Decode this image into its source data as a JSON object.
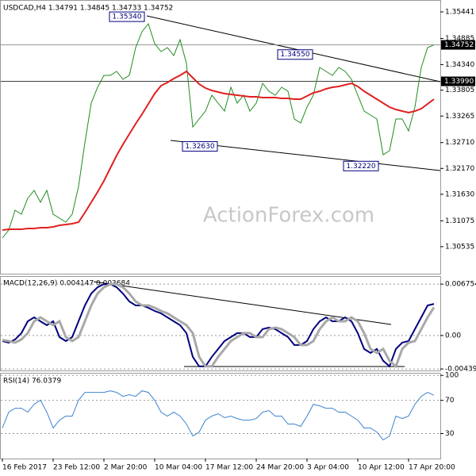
{
  "watermark": "ActionForex.com",
  "chart_data": [
    {
      "type": "line",
      "title": "USDCAD,H4 1.34791 1.34845 1.34733 1.34752",
      "series": [
        {
          "color": "#1e8c1e",
          "values": [
            1.30716,
            1.30882,
            1.31296,
            1.31213,
            1.31545,
            1.31711,
            1.31462,
            1.31711,
            1.31213,
            1.3113,
            1.31047,
            1.31213,
            1.31793,
            1.32705,
            1.33534,
            1.33866,
            1.34115,
            1.34115,
            1.34197,
            1.34032,
            1.34115,
            1.34695,
            1.35026,
            1.35192,
            1.34778,
            1.34612,
            1.34695,
            1.34529,
            1.34861,
            1.34363,
            1.33037,
            1.33203,
            1.33368,
            1.337,
            1.33534,
            1.33368,
            1.33866,
            1.33534,
            1.337,
            1.33368,
            1.33534,
            1.33949,
            1.33783,
            1.337,
            1.33866,
            1.33783,
            1.33203,
            1.3312,
            1.33451,
            1.337,
            1.3428,
            1.34197,
            1.34115,
            1.3428,
            1.34197,
            1.34032,
            1.337,
            1.33368,
            1.33286,
            1.33203,
            1.32457,
            1.3254,
            1.33203,
            1.33203,
            1.32954,
            1.33451,
            1.3428,
            1.34695,
            1.34752
          ]
        },
        {
          "color": "#e02020",
          "values": [
            1.30882,
            1.30898,
            1.30898,
            1.30898,
            1.30915,
            1.30915,
            1.30931,
            1.30931,
            1.30948,
            1.30981,
            1.30998,
            1.31014,
            1.31047,
            1.31246,
            1.31462,
            1.31677,
            1.31909,
            1.32175,
            1.3244,
            1.32672,
            1.32888,
            1.33103,
            1.33302,
            1.33518,
            1.33733,
            1.33899,
            1.33965,
            1.34048,
            1.34115,
            1.34197,
            1.34065,
            1.33932,
            1.33849,
            1.338,
            1.33766,
            1.33733,
            1.33717,
            1.337,
            1.33684,
            1.33667,
            1.33667,
            1.3365,
            1.3365,
            1.3365,
            1.33634,
            1.33634,
            1.33617,
            1.33617,
            1.33684,
            1.3375,
            1.33783,
            1.33833,
            1.33866,
            1.33882,
            1.33916,
            1.33949,
            1.33882,
            1.33783,
            1.337,
            1.33617,
            1.33534,
            1.33451,
            1.33402,
            1.33368,
            1.33335,
            1.33368,
            1.33418,
            1.33518,
            1.33617
          ]
        }
      ],
      "ylim": [
        1.2997,
        1.3564
      ],
      "yticks": [
        1.35441,
        1.34885,
        {
          "value": 1.3434,
          "label": "1.34340"
        },
        1.33805,
        1.33265,
        {
          "value": 1.3271,
          "label": "1.32710"
        },
        {
          "value": 1.3217,
          "label": "1.32170"
        },
        {
          "value": 1.3163,
          "label": "1.31630"
        },
        1.31075,
        1.30535
      ],
      "hlines": [
        {
          "value": 1.3399,
          "label": "1.33990"
        },
        {
          "value": 1.34752,
          "label": "1.34752"
        }
      ],
      "annotations": [
        {
          "value": 1.3534,
          "label": "1.35340"
        },
        {
          "value": 1.3455,
          "label": "1.34550"
        },
        {
          "value": 1.3263,
          "label": "1.32630"
        },
        {
          "value": 1.3222,
          "label": "1.32220"
        }
      ]
    },
    {
      "type": "line",
      "title": "MACD(12,26,9) 0.004147 0.003684",
      "series": [
        {
          "color": "#00007f",
          "values": [
            -0.00073,
            -0.00094,
            -0.00052,
            0.00031,
            0.00187,
            0.00239,
            0.00187,
            0.00135,
            0.00187,
            -0.00021,
            -0.00073,
            -0.00021,
            0.00187,
            0.00395,
            0.00551,
            0.00634,
            0.00676,
            0.00676,
            0.00634,
            0.00551,
            0.00447,
            0.00395,
            0.00395,
            0.00364,
            0.00322,
            0.00291,
            0.00239,
            0.00187,
            0.00135,
            0.00031,
            -0.00281,
            -0.00406,
            -0.00406,
            -0.00281,
            -0.00177,
            -0.00073,
            -0.00021,
            0.00031,
            0.00031,
            -0.00021,
            -0.00021,
            0.00083,
            0.00104,
            0.00083,
            0.00031,
            -0.00021,
            -0.00125,
            -0.00125,
            -0.00073,
            0.00083,
            0.00187,
            0.00239,
            0.00187,
            0.00187,
            0.00239,
            0.00187,
            0.00031,
            -0.00177,
            -0.00229,
            -0.00177,
            -0.00333,
            -0.00406,
            -0.00177,
            -0.00094,
            -0.00073,
            0.00083,
            0.00239,
            0.00395,
            0.00415
          ]
        },
        {
          "color": "#a8a8a8",
          "values": [
            -0.0006,
            -0.00073,
            -0.00094,
            -0.00052,
            0.00031,
            0.00187,
            0.00239,
            0.00187,
            0.00135,
            0.00187,
            -0.00021,
            -0.00073,
            -0.00021,
            0.00187,
            0.00395,
            0.00551,
            0.00634,
            0.00676,
            0.00676,
            0.00634,
            0.00551,
            0.00447,
            0.00395,
            0.00395,
            0.00364,
            0.00322,
            0.00291,
            0.00239,
            0.00187,
            0.00135,
            0.00031,
            -0.00281,
            -0.00406,
            -0.00406,
            -0.00281,
            -0.00177,
            -0.00073,
            -0.00021,
            0.00031,
            0.00031,
            -0.00021,
            -0.00021,
            0.00083,
            0.00104,
            0.00083,
            0.00031,
            -0.00021,
            -0.00125,
            -0.00125,
            -0.00073,
            0.00083,
            0.00187,
            0.00239,
            0.00187,
            0.00187,
            0.00239,
            0.00187,
            0.00031,
            -0.00177,
            -0.00229,
            -0.00177,
            -0.00333,
            -0.00406,
            -0.00177,
            -0.00094,
            -0.00073,
            0.00083,
            0.00239,
            0.00368
          ]
        }
      ],
      "ylim": [
        -0.0046,
        0.0076
      ],
      "yticks": [
        0.006754,
        {
          "value": 0,
          "label": "0.00"
        },
        -0.004399
      ],
      "grid": true
    },
    {
      "type": "line",
      "title": "RSI(14) 76.0379",
      "categories": [
        "16 Feb 2017",
        null,
        null,
        null,
        null,
        null,
        null,
        null,
        "23 Feb 12:00",
        null,
        null,
        null,
        null,
        null,
        null,
        null,
        "2 Mar 20:00",
        null,
        null,
        null,
        null,
        null,
        null,
        null,
        "10 Mar 04:00",
        null,
        null,
        null,
        null,
        null,
        null,
        null,
        "17 Mar 12:00",
        null,
        null,
        null,
        null,
        null,
        null,
        null,
        "24 Mar 20:00",
        null,
        null,
        null,
        null,
        null,
        null,
        null,
        "3 Apr 04:00",
        null,
        null,
        null,
        null,
        null,
        null,
        null,
        "10 Apr 12:00",
        null,
        null,
        null,
        null,
        null,
        null,
        null,
        "17 Apr 20:00",
        null,
        null,
        null,
        null
      ],
      "series": [
        {
          "color": "#3c82d2",
          "values": [
            36.7,
            55.8,
            60.5,
            60.5,
            55.8,
            65.3,
            70.1,
            55.8,
            36.7,
            46.2,
            51.0,
            51.0,
            70.1,
            79.6,
            79.6,
            79.6,
            79.6,
            81.5,
            79.6,
            74.8,
            76.8,
            74.8,
            81.5,
            79.6,
            70.1,
            55.8,
            51.0,
            55.8,
            51.0,
            41.5,
            27.1,
            31.9,
            46.2,
            51.0,
            53.9,
            49.1,
            51.0,
            48.1,
            46.2,
            46.2,
            48.1,
            55.8,
            57.7,
            51.0,
            51.0,
            41.5,
            41.5,
            38.6,
            51.0,
            65.3,
            63.4,
            60.5,
            60.5,
            55.8,
            55.8,
            51.0,
            46.2,
            36.7,
            36.7,
            31.9,
            22.4,
            27.1,
            51.0,
            48.1,
            51.0,
            65.3,
            74.8,
            79.6,
            76.0
          ]
        }
      ],
      "ylim": [
        0,
        104
      ],
      "yticks": [
        100,
        70,
        30
      ],
      "grid": true
    }
  ]
}
